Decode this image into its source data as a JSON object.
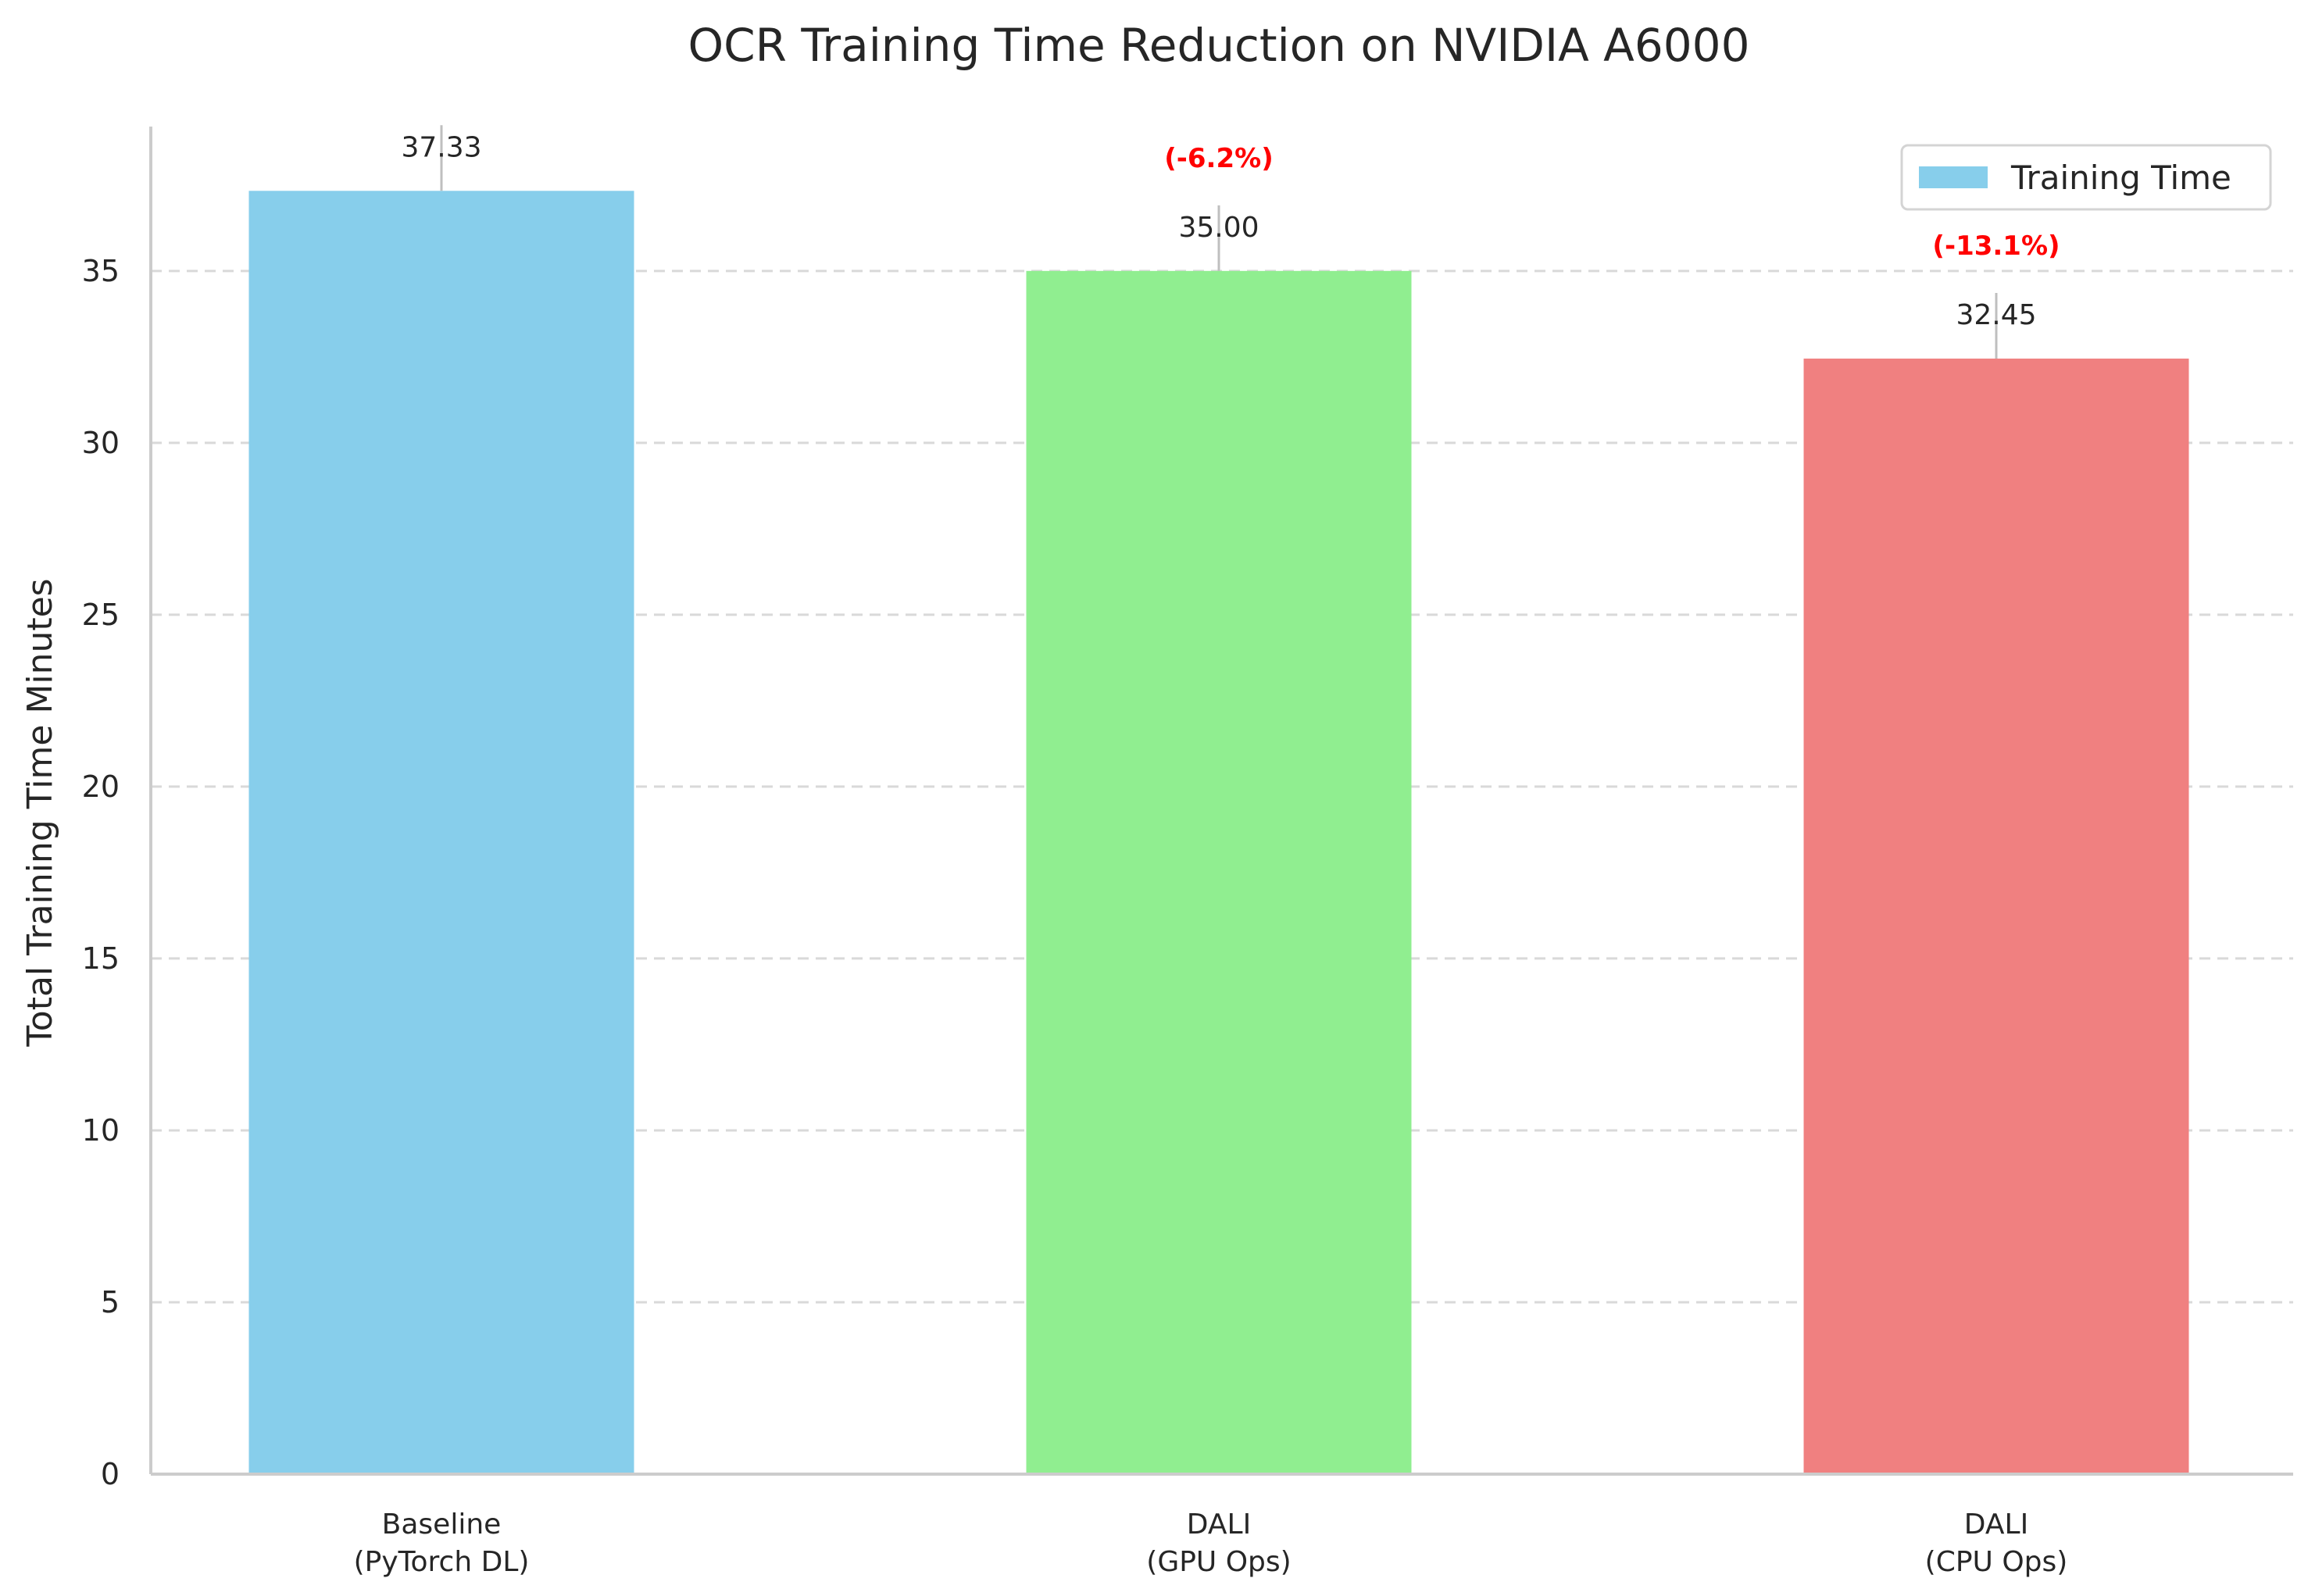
{
  "chart_data": {
    "type": "bar",
    "title": "OCR Training Time Reduction on NVIDIA A6000",
    "ylabel": "Total Training Time Minutes",
    "xlabel": "",
    "ylim": [
      0,
      39.2
    ],
    "yticks": [
      0,
      5,
      10,
      15,
      20,
      25,
      30,
      35
    ],
    "grid": "horizontal-dashed",
    "legend_position": "top-right",
    "categories": [
      [
        "Baseline",
        "(PyTorch DL)"
      ],
      [
        "DALI",
        "(GPU Ops)"
      ],
      [
        "DALI",
        "(CPU Ops)"
      ]
    ],
    "series": [
      {
        "name": "Training Time",
        "values": [
          37.33,
          35.0,
          32.45
        ],
        "value_labels": [
          "37.33",
          "35.00",
          "32.45"
        ],
        "change_labels": [
          "",
          "(-6.2%)",
          "(-13.1%)"
        ],
        "colors": [
          "#87CEEB",
          "#90EE90",
          "#F08080"
        ]
      }
    ],
    "legend_color": "#87CEEB"
  }
}
